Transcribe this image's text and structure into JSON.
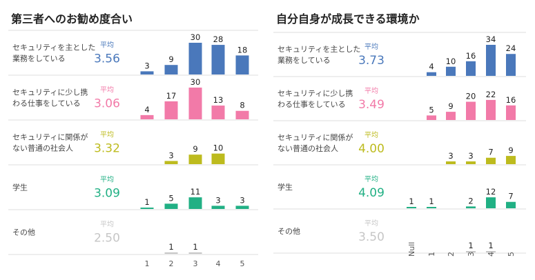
{
  "chart_data": [
    {
      "type": "bar",
      "title": "第三者へのお勧め度合い",
      "categories": [
        "1",
        "2",
        "3",
        "4",
        "5"
      ],
      "average_label": "平均",
      "series": [
        {
          "name": "セキュリティを主とした業務をしている",
          "label_lines": [
            "セキュリティを主とした",
            "業務をしている"
          ],
          "average": "3.56",
          "color": "#4a78bb",
          "values": [
            3,
            9,
            30,
            28,
            18
          ]
        },
        {
          "name": "セキュリティに少し携わる仕事をしている",
          "label_lines": [
            "セキュリティに少し携",
            "わる仕事をしている"
          ],
          "average": "3.06",
          "color": "#f27aa8",
          "values": [
            4,
            17,
            30,
            13,
            8
          ]
        },
        {
          "name": "セキュリティに関係がない普通の社会人",
          "label_lines": [
            "セキュリティに関係が",
            "ない普通の社会人"
          ],
          "average": "3.32",
          "color": "#bdbb1e",
          "values": [
            null,
            3,
            9,
            10,
            null
          ]
        },
        {
          "name": "学生",
          "label_lines": [
            "学生"
          ],
          "average": "3.09",
          "color": "#21b084",
          "values": [
            1,
            5,
            11,
            3,
            3
          ]
        },
        {
          "name": "その他",
          "label_lines": [
            "その他"
          ],
          "average": "2.50",
          "color": "#c6c6c6",
          "values": [
            null,
            1,
            1,
            null,
            null
          ]
        }
      ]
    },
    {
      "type": "bar",
      "title": "自分自身が成長できる環境か",
      "categories": [
        "Null",
        "1",
        "2",
        "3",
        "4",
        "5"
      ],
      "average_label": "平均",
      "series": [
        {
          "name": "セキュリティを主とした業務をしている",
          "label_lines": [
            "セキュリティを主とした",
            "業務をしている"
          ],
          "average": "3.73",
          "color": "#4a78bb",
          "values": [
            null,
            4,
            10,
            16,
            34,
            24
          ]
        },
        {
          "name": "セキュリティに少し携わる仕事をしている",
          "label_lines": [
            "セキュリティに少し携",
            "わる仕事をしている"
          ],
          "average": "3.49",
          "color": "#f27aa8",
          "values": [
            null,
            5,
            9,
            20,
            22,
            16
          ]
        },
        {
          "name": "セキュリティに関係がない普通の社会人",
          "label_lines": [
            "セキュリティに関係が",
            "ない普通の社会人"
          ],
          "average": "4.00",
          "color": "#bdbb1e",
          "values": [
            null,
            null,
            3,
            3,
            7,
            9
          ]
        },
        {
          "name": "学生",
          "label_lines": [
            "学生"
          ],
          "average": "4.09",
          "color": "#21b084",
          "values": [
            1,
            1,
            null,
            2,
            12,
            7
          ]
        },
        {
          "name": "その他",
          "label_lines": [
            "その他"
          ],
          "average": "3.50",
          "color": "#c6c6c6",
          "values": [
            null,
            null,
            null,
            1,
            1,
            null
          ]
        }
      ]
    }
  ]
}
